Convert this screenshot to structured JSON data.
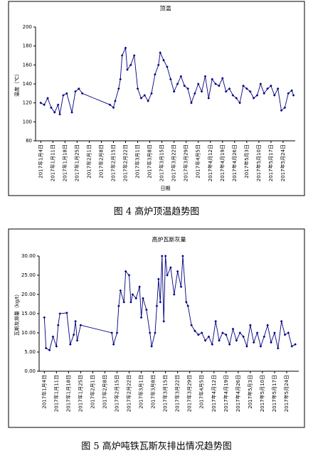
{
  "chart_data": [
    {
      "type": "line",
      "title": "顶温",
      "y_label": "温度（℃）",
      "x_label": "日期",
      "caption": "图 4  高炉顶温趋势图",
      "xlim": [
        "2017-01-01",
        "2017-05-31"
      ],
      "ylim": [
        80,
        200
      ],
      "yticks": [
        80,
        100,
        120,
        140,
        160,
        180,
        200
      ],
      "xticks": [
        {
          "value": "2017-01-04",
          "label": "2017年1月4日"
        },
        {
          "value": "2017-01-11",
          "label": "2017年1月11日"
        },
        {
          "value": "2017-01-18",
          "label": "2017年1月18日"
        },
        {
          "value": "2017-01-25",
          "label": "2017年1月25日"
        },
        {
          "value": "2017-02-01",
          "label": "2017年2月1日"
        },
        {
          "value": "2017-02-08",
          "label": "2017年2月8日"
        },
        {
          "value": "2017-02-15",
          "label": "2017年2月15日"
        },
        {
          "value": "2017-02-22",
          "label": "2017年2月22日"
        },
        {
          "value": "2017-03-01",
          "label": "2017年3月1日"
        },
        {
          "value": "2017-03-08",
          "label": "2017年3月8日"
        },
        {
          "value": "2017-03-15",
          "label": "2017年3月15日"
        },
        {
          "value": "2017-03-22",
          "label": "2017年3月22日"
        },
        {
          "value": "2017-03-29",
          "label": "2017年3月29日"
        },
        {
          "value": "2017-04-05",
          "label": "2017年4月5日"
        },
        {
          "value": "2017-04-12",
          "label": "2017年4月12日"
        },
        {
          "value": "2017-04-19",
          "label": "2017年4月19日"
        },
        {
          "value": "2017-04-26",
          "label": "2017年4月26日"
        },
        {
          "value": "2017-05-03",
          "label": "2017年5月3日"
        },
        {
          "value": "2017-05-10",
          "label": "2017年5月10日"
        },
        {
          "value": "2017-05-17",
          "label": "2017年5月17日"
        },
        {
          "value": "2017-05-24",
          "label": "2017年5月24日"
        }
      ],
      "color": "#000080",
      "x": [
        "2017-01-04",
        "2017-01-06",
        "2017-01-08",
        "2017-01-10",
        "2017-01-12",
        "2017-01-14",
        "2017-01-15",
        "2017-01-17",
        "2017-01-19",
        "2017-01-22",
        "2017-01-24",
        "2017-01-26",
        "2017-01-28",
        "2017-02-13",
        "2017-02-15",
        "2017-02-16",
        "2017-02-18",
        "2017-02-19",
        "2017-02-20",
        "2017-02-22",
        "2017-02-23",
        "2017-02-25",
        "2017-02-27",
        "2017-03-01",
        "2017-03-03",
        "2017-03-05",
        "2017-03-07",
        "2017-03-09",
        "2017-03-11",
        "2017-03-13",
        "2017-03-14",
        "2017-03-16",
        "2017-03-18",
        "2017-03-20",
        "2017-03-22",
        "2017-03-24",
        "2017-03-26",
        "2017-03-28",
        "2017-03-30",
        "2017-04-01",
        "2017-04-03",
        "2017-04-05",
        "2017-04-07",
        "2017-04-09",
        "2017-04-11",
        "2017-04-13",
        "2017-04-15",
        "2017-04-17",
        "2017-04-19",
        "2017-04-21",
        "2017-04-23",
        "2017-04-25",
        "2017-04-27",
        "2017-04-29",
        "2017-05-01",
        "2017-05-03",
        "2017-05-05",
        "2017-05-07",
        "2017-05-09",
        "2017-05-11",
        "2017-05-13",
        "2017-05-15",
        "2017-05-17",
        "2017-05-19",
        "2017-05-21",
        "2017-05-23",
        "2017-05-25",
        "2017-05-27",
        "2017-05-29",
        "2017-05-30"
      ],
      "values": [
        120,
        118,
        125,
        115,
        110,
        118,
        108,
        128,
        130,
        110,
        132,
        135,
        130,
        118,
        115,
        122,
        135,
        145,
        170,
        178,
        155,
        160,
        170,
        135,
        125,
        128,
        122,
        130,
        150,
        160,
        173,
        165,
        158,
        145,
        132,
        140,
        148,
        138,
        135,
        120,
        130,
        140,
        132,
        148,
        125,
        145,
        140,
        138,
        146,
        132,
        135,
        128,
        125,
        120,
        138,
        135,
        132,
        125,
        128,
        140,
        130,
        135,
        138,
        128,
        135,
        112,
        115,
        130,
        133,
        128
      ]
    },
    {
      "type": "line",
      "title": "高炉瓦斯灰量",
      "y_label": "瓦斯灰排量（kg/t）",
      "caption": "图 5  高炉吨铁瓦斯灰排出情况趋势图",
      "xlim": [
        "2017-01-01",
        "2017-05-31"
      ],
      "ylim": [
        0,
        30
      ],
      "yticks": [
        {
          "value": 0,
          "label": "0.00"
        },
        {
          "value": 5,
          "label": "5.00"
        },
        {
          "value": 10,
          "label": "10.00"
        },
        {
          "value": 15,
          "label": "15.00"
        },
        {
          "value": 20,
          "label": "20.00"
        },
        {
          "value": 25,
          "label": "25.00"
        },
        {
          "value": 30,
          "label": "30.00"
        }
      ],
      "xticks": [
        {
          "value": "2017-01-04",
          "label": "2017年1月4日"
        },
        {
          "value": "2017-01-11",
          "label": "2017年1月11日"
        },
        {
          "value": "2017-01-18",
          "label": "2017年1月18日"
        },
        {
          "value": "2017-01-25",
          "label": "2017年1月25日"
        },
        {
          "value": "2017-02-01",
          "label": "2017年2月1日"
        },
        {
          "value": "2017-02-08",
          "label": "2017年2月8日"
        },
        {
          "value": "2017-02-15",
          "label": "2017年2月15日"
        },
        {
          "value": "2017-02-22",
          "label": "2017年2月22日"
        },
        {
          "value": "2017-03-01",
          "label": "2017年3月1日"
        },
        {
          "value": "2017-03-08",
          "label": "2017年3月8日"
        },
        {
          "value": "2017-03-15",
          "label": "2017年3月15日"
        },
        {
          "value": "2017-03-22",
          "label": "2017年3月22日"
        },
        {
          "value": "2017-03-29",
          "label": "2017年3月29日"
        },
        {
          "value": "2017-04-05",
          "label": "2017年4月5日"
        },
        {
          "value": "2017-04-12",
          "label": "2017年4月12日"
        },
        {
          "value": "2017-04-19",
          "label": "2017年4月19日"
        },
        {
          "value": "2017-04-26",
          "label": "2017年4月26日"
        },
        {
          "value": "2017-05-03",
          "label": "2017年5月3日"
        },
        {
          "value": "2017-05-10",
          "label": "2017年5月10日"
        },
        {
          "value": "2017-05-17",
          "label": "2017年5月17日"
        },
        {
          "value": "2017-05-24",
          "label": "2017年5月24日"
        }
      ],
      "color": "#000080",
      "x": [
        "2017-01-04",
        "2017-01-05",
        "2017-01-07",
        "2017-01-09",
        "2017-01-11",
        "2017-01-12",
        "2017-01-13",
        "2017-01-17",
        "2017-01-19",
        "2017-01-21",
        "2017-01-22",
        "2017-01-23",
        "2017-01-25",
        "2017-02-12",
        "2017-02-13",
        "2017-02-15",
        "2017-02-16",
        "2017-02-17",
        "2017-02-19",
        "2017-02-20",
        "2017-02-22",
        "2017-02-23",
        "2017-02-24",
        "2017-02-26",
        "2017-02-28",
        "2017-03-01",
        "2017-03-02",
        "2017-03-04",
        "2017-03-06",
        "2017-03-07",
        "2017-03-09",
        "2017-03-10",
        "2017-03-11",
        "2017-03-12",
        "2017-03-13",
        "2017-03-14",
        "2017-03-15",
        "2017-03-16",
        "2017-03-18",
        "2017-03-20",
        "2017-03-22",
        "2017-03-24",
        "2017-03-25",
        "2017-03-27",
        "2017-03-28",
        "2017-03-30",
        "2017-04-01",
        "2017-04-03",
        "2017-04-05",
        "2017-04-07",
        "2017-04-09",
        "2017-04-11",
        "2017-04-13",
        "2017-04-15",
        "2017-04-17",
        "2017-04-19",
        "2017-04-21",
        "2017-04-23",
        "2017-04-25",
        "2017-04-27",
        "2017-04-29",
        "2017-05-01",
        "2017-05-03",
        "2017-05-05",
        "2017-05-07",
        "2017-05-09",
        "2017-05-11",
        "2017-05-13",
        "2017-05-15",
        "2017-05-17",
        "2017-05-19",
        "2017-05-21",
        "2017-05-23",
        "2017-05-25",
        "2017-05-27",
        "2017-05-29"
      ],
      "values": [
        14,
        6,
        5.5,
        9,
        6.5,
        12,
        15,
        15.2,
        7,
        9.5,
        13,
        8,
        12,
        10,
        7,
        10,
        17,
        21,
        18,
        26,
        25,
        18,
        20,
        19,
        22,
        14,
        19,
        16,
        10,
        6.5,
        10,
        17,
        24,
        18,
        30,
        13,
        30,
        25,
        27,
        20,
        26,
        22,
        30,
        18,
        17,
        12,
        10.5,
        9.5,
        10,
        8,
        9,
        7,
        13,
        8,
        10,
        9.5,
        7,
        11,
        8,
        10,
        9,
        6.5,
        12,
        7.5,
        10,
        6.5,
        9,
        12,
        7.5,
        10,
        6,
        13,
        9.5,
        10,
        6.5,
        7
      ]
    }
  ]
}
